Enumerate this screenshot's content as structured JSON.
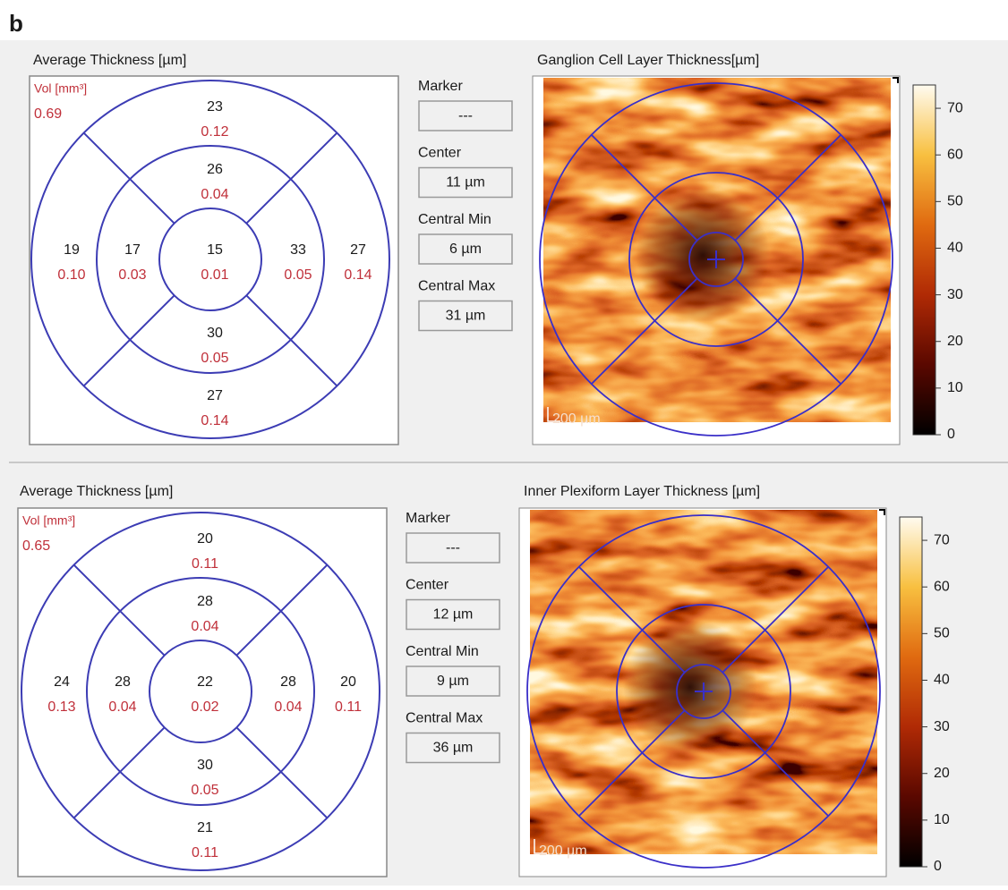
{
  "figure_label": "b",
  "panels": [
    {
      "thickness_title": "Average Thickness [µm]",
      "volume_label": "Vol [mm³]",
      "total_volume": "0.69",
      "sectors": [
        {
          "thickness": 23,
          "volume": "0.12"
        },
        {
          "thickness": 26,
          "volume": "0.04"
        },
        {
          "thickness": 19,
          "volume": "0.10"
        },
        {
          "thickness": 17,
          "volume": "0.03"
        },
        {
          "thickness": 15,
          "volume": "0.01"
        },
        {
          "thickness": 33,
          "volume": "0.05"
        },
        {
          "thickness": 27,
          "volume": "0.14"
        },
        {
          "thickness": 30,
          "volume": "0.05"
        },
        {
          "thickness": 27,
          "volume": "0.14"
        }
      ],
      "fields": [
        {
          "label": "Marker",
          "value": "---"
        },
        {
          "label": "Center",
          "value": "11 µm"
        },
        {
          "label": "Central Min",
          "value": "6 µm"
        },
        {
          "label": "Central Max",
          "value": "31 µm"
        }
      ],
      "map_title": "Ganglion Cell Layer Thickness[µm]",
      "scale_bar": "200 µm",
      "colorbar": {
        "lim": [
          0,
          75
        ],
        "ticks": [
          0,
          10,
          20,
          30,
          40,
          50,
          60,
          70
        ]
      }
    },
    {
      "thickness_title": "Average Thickness [µm]",
      "volume_label": "Vol [mm³]",
      "total_volume": "0.65",
      "sectors": [
        {
          "thickness": 20,
          "volume": "0.11"
        },
        {
          "thickness": 28,
          "volume": "0.04"
        },
        {
          "thickness": 24,
          "volume": "0.13"
        },
        {
          "thickness": 28,
          "volume": "0.04"
        },
        {
          "thickness": 22,
          "volume": "0.02"
        },
        {
          "thickness": 28,
          "volume": "0.04"
        },
        {
          "thickness": 20,
          "volume": "0.11"
        },
        {
          "thickness": 30,
          "volume": "0.05"
        },
        {
          "thickness": 21,
          "volume": "0.11"
        }
      ],
      "fields": [
        {
          "label": "Marker",
          "value": "---"
        },
        {
          "label": "Center",
          "value": "12 µm"
        },
        {
          "label": "Central Min",
          "value": "9 µm"
        },
        {
          "label": "Central Max",
          "value": "36 µm"
        }
      ],
      "map_title": "Inner Plexiform Layer Thickness [µm]",
      "scale_bar": "200 µm",
      "colorbar": {
        "lim": [
          0,
          75
        ],
        "ticks": [
          0,
          10,
          20,
          30,
          40,
          50,
          60,
          70
        ]
      }
    }
  ]
}
